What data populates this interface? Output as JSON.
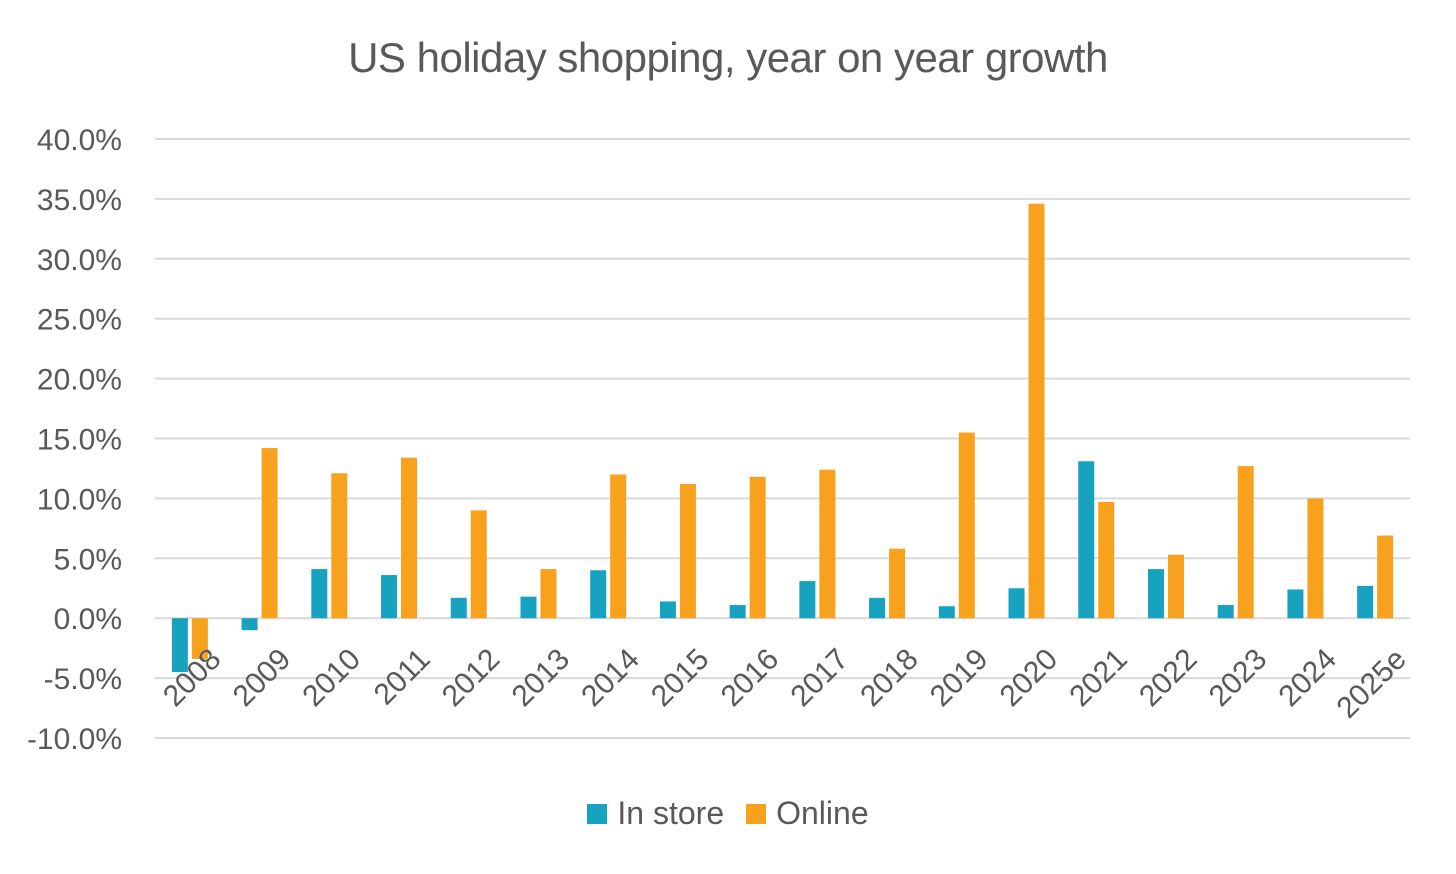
{
  "chart_data": {
    "type": "bar",
    "title": "US holiday shopping, year on year growth",
    "xlabel": "",
    "ylabel": "",
    "ylim": [
      -10,
      40
    ],
    "yticks": [
      "40.0%",
      "35.0%",
      "30.0%",
      "25.0%",
      "20.0%",
      "15.0%",
      "10.0%",
      "5.0%",
      "0.0%",
      "-5.0%",
      "-10.0%"
    ],
    "ytick_values": [
      40,
      35,
      30,
      25,
      20,
      15,
      10,
      5,
      0,
      -5,
      -10
    ],
    "categories": [
      "2008",
      "2009",
      "2010",
      "2011",
      "2012",
      "2013",
      "2014",
      "2015",
      "2016",
      "2017",
      "2018",
      "2019",
      "2020",
      "2021",
      "2022",
      "2023",
      "2024",
      "2025e"
    ],
    "series": [
      {
        "name": "In store",
        "color": "#17a2bf",
        "values": [
          -4.5,
          -1.0,
          4.1,
          3.6,
          1.7,
          1.8,
          4.0,
          1.4,
          1.1,
          3.1,
          1.7,
          1.0,
          2.5,
          13.1,
          4.1,
          1.1,
          2.4,
          2.7
        ]
      },
      {
        "name": "Online",
        "color": "#f8a11c",
        "values": [
          -3.4,
          14.2,
          12.1,
          13.4,
          9.0,
          4.1,
          12.0,
          11.2,
          11.8,
          12.4,
          5.8,
          15.5,
          34.6,
          9.7,
          5.3,
          12.7,
          10.0,
          6.9
        ]
      }
    ],
    "grid": true,
    "legend_position": "bottom"
  }
}
